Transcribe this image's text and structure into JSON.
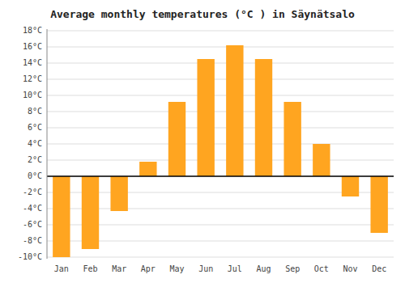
{
  "chart_data": {
    "type": "bar",
    "title": "Average monthly temperatures (°C ) in Säynätsalo",
    "categories": [
      "Jan",
      "Feb",
      "Mar",
      "Apr",
      "May",
      "Jun",
      "Jul",
      "Aug",
      "Sep",
      "Oct",
      "Nov",
      "Dec"
    ],
    "values": [
      -10,
      -9,
      -4.3,
      1.8,
      9.2,
      14.5,
      16.2,
      14.5,
      9.2,
      4.0,
      -2.5,
      -7.0
    ],
    "color": "#FFA520",
    "ylim": [
      -10.2,
      18.2
    ],
    "yticks": [
      {
        "value": -10,
        "label": "-10°C"
      },
      {
        "value": -8,
        "label": "-8°C"
      },
      {
        "value": -6,
        "label": "-6°C"
      },
      {
        "value": -4,
        "label": "-4°C"
      },
      {
        "value": -2,
        "label": "-2°C"
      },
      {
        "value": 0,
        "label": "0°C"
      },
      {
        "value": 2,
        "label": "2°C"
      },
      {
        "value": 4,
        "label": "4°C"
      },
      {
        "value": 6,
        "label": "6°C"
      },
      {
        "value": 8,
        "label": "8°C"
      },
      {
        "value": 10,
        "label": "10°C"
      },
      {
        "value": 12,
        "label": "12°C"
      },
      {
        "value": 14,
        "label": "14°C"
      },
      {
        "value": 16,
        "label": "16°C"
      },
      {
        "value": 18,
        "label": "18°C"
      }
    ],
    "grid": true
  }
}
